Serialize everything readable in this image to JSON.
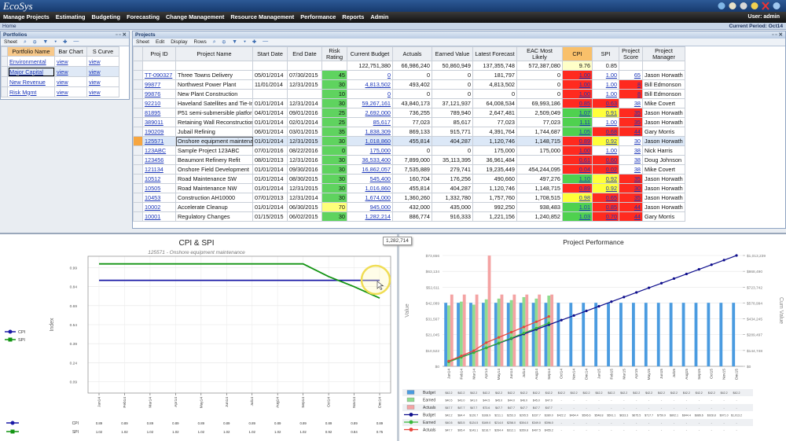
{
  "header": {
    "logo": "EcoSys",
    "menu": [
      "Manage Projects",
      "Estimating",
      "Budgeting",
      "Forecasting",
      "Change Management",
      "Resource Management",
      "Performance",
      "Reports",
      "Admin"
    ],
    "user": "User: admin",
    "breadcrumb": "Home",
    "period": "Current Period: Oct14"
  },
  "tooltip": "1,282,714",
  "portfolios": {
    "title": "Portfolios",
    "toolbar": [
      "Sheet"
    ],
    "columns": [
      "Portfolio Name",
      "Bar Chart",
      "S Curve"
    ],
    "rows": [
      [
        "Environmental",
        "view",
        "view"
      ],
      [
        "Major Capital",
        "view",
        "view"
      ],
      [
        "New Revenue",
        "view",
        "view"
      ],
      [
        "Risk Mgmt",
        "view",
        "view"
      ]
    ],
    "selected": 1
  },
  "projects": {
    "title": "Projects",
    "toolbar": [
      "Sheet",
      "Edit",
      "Display",
      "Rows"
    ],
    "columns": [
      "Proj ID",
      "Project Name",
      "Start Date",
      "End Date",
      "Risk Rating",
      "Current Budget",
      "Actuals",
      "Earned Value",
      "Latest Forecast",
      "EAC Most Likely",
      "CPI",
      "SPI",
      "Project Score",
      "Project Manager"
    ],
    "totals": [
      null,
      null,
      null,
      null,
      null,
      "122,751,380",
      "66,986,240",
      "50,860,949",
      "137,355,748",
      "572,387,080",
      "9.76",
      "0.85",
      null,
      null
    ],
    "selected": 7,
    "rows": [
      {
        "cells": [
          "TT-090327",
          "Three Towns Delivery",
          "05/01/2014",
          "07/30/2015",
          "45",
          "0",
          "0",
          "0",
          "181,797",
          "0",
          "1.00",
          "1.00",
          "65",
          "Jason Horwath"
        ],
        "colors": [
          "#5fd35f",
          "#ff2a1f",
          "#ffffff",
          "#ffffff"
        ]
      },
      {
        "cells": [
          "99877",
          "Northwest Power Plant",
          "11/01/2014",
          "12/31/2015",
          "30",
          "4,813,502",
          "493,402",
          "0",
          "4,813,502",
          "0",
          "1.00",
          "1.00",
          "8",
          "Bill Edmonson"
        ],
        "colors": [
          "#5fd35f",
          "#ff2a1f",
          "#ffffff",
          "#ff2a1f"
        ]
      },
      {
        "cells": [
          "99876",
          "New Plant Construction",
          null,
          null,
          "10",
          "0",
          "0",
          "0",
          "0",
          "0",
          "1.00",
          "1.00",
          "8",
          "Bill Edmonson"
        ],
        "colors": [
          "#5fd35f",
          "#ff2a1f",
          "#ffffff",
          "#ff2a1f"
        ]
      },
      {
        "cells": [
          "92210",
          "Haveland Satellites and Tie-In",
          "01/01/2014",
          "12/31/2014",
          "30",
          "59,267,161",
          "43,840,173",
          "37,121,937",
          "64,008,534",
          "69,993,186",
          "0.85",
          "0.63",
          "38",
          "Mike Covert"
        ],
        "colors": [
          "#5fd35f",
          "#ff2a1f",
          "#ff2a1f",
          "#ffffff"
        ]
      },
      {
        "cells": [
          "81895",
          "P51 semi-submersible platform",
          "04/01/2014",
          "09/01/2016",
          "25",
          "2,692,000",
          "736,255",
          "789,940",
          "2,647,481",
          "2,509,049",
          "1.07",
          "0.91",
          "35",
          "Jason Horwath"
        ],
        "colors": [
          "#5fd35f",
          "#4fd14f",
          "#ffff3a",
          "#ff2a1f"
        ]
      },
      {
        "cells": [
          "389011",
          "Retaining Wall Reconstruction",
          "01/01/2014",
          "02/01/2014",
          "25",
          "85,617",
          "77,023",
          "85,617",
          "77,023",
          "77,023",
          "1.11",
          "1.00",
          "35",
          "Jason Horwath"
        ],
        "colors": [
          "#5fd35f",
          "#4fd14f",
          "#ffffff",
          "#ff2a1f"
        ]
      },
      {
        "cells": [
          "190209",
          "Jubail Refining",
          "06/01/2014",
          "03/01/2015",
          "35",
          "1,838,309",
          "869,133",
          "915,771",
          "4,391,764",
          "1,744,687",
          "1.05",
          "0.68",
          "44",
          "Gary Morris"
        ],
        "colors": [
          "#5fd35f",
          "#4fd14f",
          "#ff2a1f",
          "#ff2a1f"
        ]
      },
      {
        "cells": [
          "125571",
          "Onshore equipment maintenance",
          "01/01/2014",
          "12/31/2015",
          "30",
          "1,018,860",
          "455,814",
          "404,287",
          "1,120,746",
          "1,148,715",
          "0.89",
          "0.92",
          "30",
          "Jason Horwath"
        ],
        "colors": [
          "#5fd35f",
          "#ff2a1f",
          "#ffff3a",
          "#ffffff"
        ]
      },
      {
        "cells": [
          "123ABC",
          "Sample Project 123ABC",
          "07/01/2016",
          "08/22/2016",
          "0",
          "175,000",
          "0",
          "0",
          "175,000",
          "175,000",
          "1.00",
          "1.00",
          "38",
          "Nick Harris"
        ],
        "colors": [
          "#5fd35f",
          "#ff2a1f",
          "#ffffff",
          "#ffffff"
        ]
      },
      {
        "cells": [
          "123456",
          "Beaumont Refinery Refit",
          "08/01/2013",
          "12/31/2016",
          "30",
          "36,533,400",
          "7,899,000",
          "35,113,395",
          "36,961,484",
          null,
          "0.61",
          "0.60",
          "38",
          "Doug Johnson"
        ],
        "colors": [
          "#5fd35f",
          "#ff2a1f",
          "#ff2a1f",
          "#ffffff"
        ]
      },
      {
        "cells": [
          "121134",
          "Onshore Field Development",
          "01/01/2014",
          "09/30/2016",
          "30",
          "16,862,057",
          "7,535,889",
          "279,741",
          "19,235,449",
          "454,244,095",
          "0.04",
          "0.02",
          "38",
          "Mike Covert"
        ],
        "colors": [
          "#5fd35f",
          "#ff2a1f",
          "#ff2a1f",
          "#ffffff"
        ]
      },
      {
        "cells": [
          "10512",
          "Road Maintenance SW",
          "01/01/2014",
          "08/30/2015",
          "30",
          "545,400",
          "160,704",
          "176,256",
          "490,660",
          "497,276",
          "1.10",
          "0.92",
          "35",
          "Jason Horwath"
        ],
        "colors": [
          "#5fd35f",
          "#4fd14f",
          "#ffff3a",
          "#ff2a1f"
        ]
      },
      {
        "cells": [
          "10505",
          "Road Maintenance NW",
          "01/01/2014",
          "12/31/2015",
          "30",
          "1,016,860",
          "455,814",
          "404,287",
          "1,120,746",
          "1,148,715",
          "0.89",
          "0.92",
          "30",
          "Jason Horwath"
        ],
        "colors": [
          "#5fd35f",
          "#ff2a1f",
          "#ffff3a",
          "#ff2a1f"
        ]
      },
      {
        "cells": [
          "10453",
          "Construction AH10000",
          "07/01/2013",
          "12/31/2014",
          "30",
          "1,674,000",
          "1,360,260",
          "1,332,780",
          "1,757,760",
          "1,708,515",
          "0.98",
          "0.65",
          "35",
          "Jason Horwath"
        ],
        "colors": [
          "#5fd35f",
          "#ffff3a",
          "#ff2a1f",
          "#ff2a1f"
        ]
      },
      {
        "cells": [
          "10002",
          "Accelerate Cleanup",
          "01/01/2014",
          "06/30/2015",
          "70",
          "945,000",
          "432,000",
          "435,000",
          "992,250",
          "938,483",
          "1.01",
          "0.85",
          "44",
          "Jason Horwath"
        ],
        "colors": [
          "#ffff7a",
          "#4fd14f",
          "#ff2a1f",
          "#ff2a1f"
        ]
      },
      {
        "cells": [
          "10001",
          "Regulatory Changes",
          "01/15/2015",
          "06/02/2015",
          "30",
          "1,282,214",
          "886,774",
          "916,333",
          "1,221,156",
          "1,240,852",
          "1.03",
          "0.70",
          "44",
          "Gary Morris"
        ],
        "colors": [
          "#5fd35f",
          "#4fd14f",
          "#ff2a1f",
          "#ff2a1f"
        ]
      }
    ]
  },
  "chart_data": [
    {
      "type": "line",
      "title": "CPI & SPI",
      "subtitle": "125571 - Onshore equipment maintenance",
      "y_label": "Index",
      "categories": [
        "Jan14",
        "Feb14",
        "Mar14",
        "Apr14",
        "May14",
        "Jun14",
        "Jul14",
        "Aug14",
        "Sep14",
        "Oct14",
        "Nov14",
        "Dec14"
      ],
      "series": [
        {
          "name": "CPI",
          "color": "#1a1aa6",
          "values": [
            0.89,
            0.89,
            0.89,
            0.89,
            0.89,
            0.89,
            0.89,
            0.89,
            0.89,
            0.89,
            0.89,
            0.89
          ]
        },
        {
          "name": "SPI",
          "color": "#139413",
          "values": [
            1.02,
            1.02,
            1.02,
            1.02,
            1.02,
            1.02,
            1.02,
            1.02,
            1.02,
            0.92,
            0.84,
            0.75
          ]
        }
      ],
      "ylim": [
        0,
        1.08
      ],
      "yticks": [
        0.09,
        0.24,
        0.39,
        0.54,
        0.69,
        0.84,
        0.99
      ],
      "grid": true
    },
    {
      "type": "bar-line",
      "title": "Project Performance",
      "y_label": "Value",
      "y2_label": "Cum Value",
      "categories": [
        "Jan14",
        "Feb14",
        "Mar14",
        "Apr14",
        "May14",
        "Jun14",
        "Jul14",
        "Aug14",
        "Sep14",
        "Oct14",
        "Nov14",
        "Dec14",
        "Jan15",
        "Feb15",
        "Mar15",
        "Apr15",
        "May15",
        "Jun15",
        "Jul15",
        "Aug15",
        "Sep15",
        "Oct15",
        "Nov15",
        "Dec15"
      ],
      "series": [
        {
          "name": "Budget",
          "type": "bar",
          "color": "#4a9be0",
          "values": [
            42218,
            42218,
            42218,
            42218,
            42218,
            42218,
            42218,
            42218,
            42218,
            42218,
            42218,
            42218,
            42218,
            42218,
            42218,
            42218,
            42218,
            42218,
            42218,
            42218,
            42218,
            42218,
            42218,
            42218
          ],
          "value_labels": [
            "$42.2",
            "$42.2",
            "$42.2",
            "$42.2",
            "$42.2",
            "$42.2",
            "$42.2",
            "$42.2",
            "$42.2",
            "$42.2",
            "$42.2",
            "$42.2",
            "$42.2",
            "$42.2",
            "$42.2",
            "$42.2",
            "$42.2",
            "$42.2",
            "$42.2",
            "$42.2",
            "$42.2",
            "$42.2",
            "$42.2",
            "$42.2"
          ]
        },
        {
          "name": "Earned",
          "type": "bar",
          "color": "#8fdc8f",
          "values": [
            40500,
            43000,
            41000,
            44500,
            45000,
            44000,
            46000,
            45000,
            47000,
            null,
            null,
            null,
            null,
            null,
            null,
            null,
            null,
            null,
            null,
            null,
            null,
            null,
            null,
            null
          ],
          "value_labels": [
            "$40.5",
            "$43.0",
            "$41.0",
            "$44.5",
            "$45.0",
            "$44.0",
            "$46.0",
            "$45.0",
            "$47.0",
            "-",
            "-",
            "-",
            "-",
            "-",
            "-",
            "-",
            "-",
            "-",
            "-",
            "-",
            "-",
            "-",
            "-",
            "-"
          ]
        },
        {
          "name": "Actuals",
          "type": "bar",
          "color": "#f4a3a3",
          "values": [
            47700,
            47700,
            47700,
            73600,
            47700,
            47700,
            47700,
            47700,
            47700,
            null,
            null,
            null,
            null,
            null,
            null,
            null,
            null,
            null,
            null,
            null,
            null,
            null,
            null,
            null
          ],
          "value_labels": [
            "$47.7",
            "$47.7",
            "$47.7",
            "$73.6",
            "$47.7",
            "$47.7",
            "$47.7",
            "$47.7",
            "$47.7",
            "-",
            "-",
            "-",
            "-",
            "-",
            "-",
            "-",
            "-",
            "-",
            "-",
            "-",
            "-",
            "-",
            "-",
            "-"
          ]
        },
        {
          "name": "Budget",
          "type": "line",
          "axis": "y2",
          "color": "#0d0d8c",
          "values": [
            42218,
            84436,
            126654,
            168872,
            211090,
            253308,
            295526,
            337744,
            379962,
            422180,
            464398,
            506616,
            548834,
            591052,
            633270,
            675488,
            717706,
            759924,
            802142,
            844360,
            886578,
            928796,
            971014,
            1013232
          ],
          "value_labels": [
            "$42.2",
            "$84.4",
            "$126.7",
            "$168.9",
            "$211.1",
            "$253.3",
            "$295.5",
            "$337.7",
            "$380.0",
            "$422.2",
            "$464.4",
            "$506.6",
            "$548.8",
            "$591.1",
            "$633.3",
            "$675.5",
            "$717.7",
            "$759.9",
            "$802.1",
            "$844.4",
            "$886.6",
            "$928.8",
            "$971.0",
            "$1,013.2"
          ]
        },
        {
          "name": "Earned",
          "type": "line",
          "axis": "y2",
          "color": "#38b838",
          "values": [
            40500,
            83500,
            124500,
            169000,
            214000,
            258000,
            304000,
            349000,
            396000,
            null,
            null,
            null,
            null,
            null,
            null,
            null,
            null,
            null,
            null,
            null,
            null,
            null,
            null,
            null
          ],
          "value_labels": [
            "$40.5",
            "$83.5",
            "$124.5",
            "$169.0",
            "$214.0",
            "$258.0",
            "$304.0",
            "$349.0",
            "$396.0",
            "-",
            "-",
            "-",
            "-",
            "-",
            "-",
            "-",
            "-",
            "-",
            "-",
            "-",
            "-",
            "-",
            "-",
            "-"
          ]
        },
        {
          "name": "Actuals",
          "type": "line",
          "axis": "y2",
          "color": "#e8453c",
          "values": [
            47700,
            95400,
            143100,
            216700,
            264400,
            312100,
            359800,
            407500,
            455200,
            null,
            null,
            null,
            null,
            null,
            null,
            null,
            null,
            null,
            null,
            null,
            null,
            null,
            null,
            null
          ],
          "value_labels": [
            "$47.7",
            "$95.4",
            "$143.1",
            "$216.7",
            "$264.4",
            "$312.1",
            "$359.8",
            "$407.5",
            "$455.2",
            "-",
            "-",
            "-",
            "-",
            "-",
            "-",
            "-",
            "-",
            "-",
            "-",
            "-",
            "-",
            "-",
            "-",
            "-"
          ]
        }
      ],
      "ylim": [
        0,
        73656
      ],
      "yticks": [
        {
          "value": 0,
          "label": "$0"
        },
        {
          "value": 10522,
          "label": "$10,522"
        },
        {
          "value": 21045,
          "label": "$21,045"
        },
        {
          "value": 31567,
          "label": "$31,567"
        },
        {
          "value": 42089,
          "label": "$42,089"
        },
        {
          "value": 52611,
          "label": "$52,611"
        },
        {
          "value": 63134,
          "label": "$63,134"
        },
        {
          "value": 73656,
          "label": "$73,656"
        }
      ],
      "y2lim": [
        0,
        1013239
      ],
      "y2ticks": [
        {
          "value": 0,
          "label": "$0"
        },
        {
          "value": 144748,
          "label": "$144,748"
        },
        {
          "value": 289497,
          "label": "$289,497"
        },
        {
          "value": 434245,
          "label": "$434,245"
        },
        {
          "value": 578994,
          "label": "$578,994"
        },
        {
          "value": 723742,
          "label": "$723,742"
        },
        {
          "value": 868490,
          "label": "$868,490"
        },
        {
          "value": 1013239,
          "label": "$1,013,239"
        }
      ],
      "grid": true
    }
  ]
}
